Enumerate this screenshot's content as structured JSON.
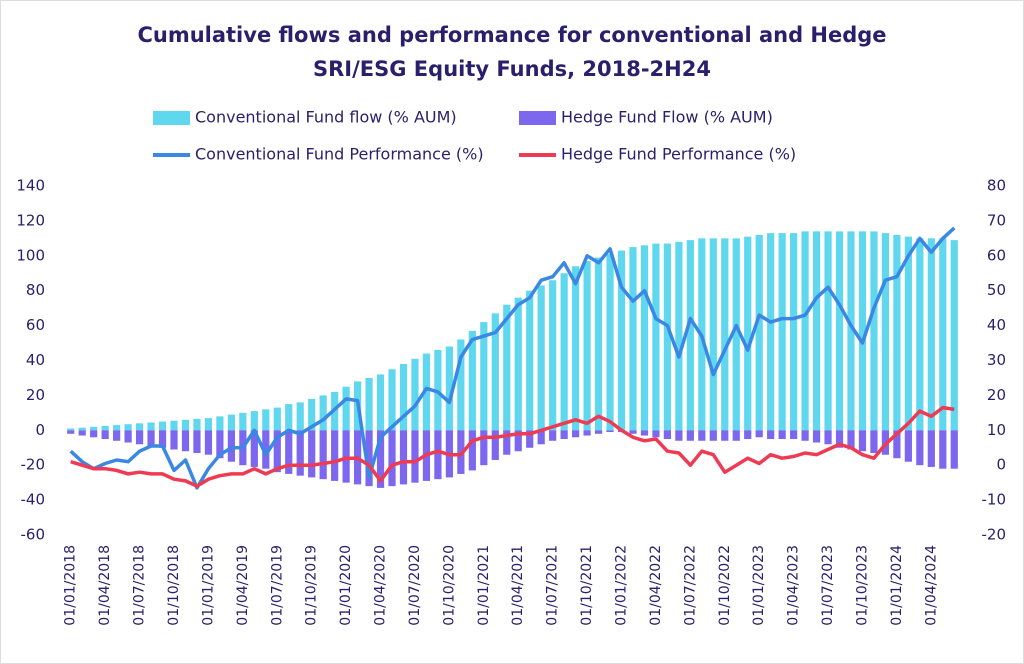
{
  "chart_data": {
    "type": "combo",
    "title": "Cumulative flows and performance for conventional and Hedge SRI/ESG Equity Funds, 2018-2H24",
    "categories": [
      "01/01/2018",
      null,
      null,
      "01/04/2018",
      null,
      null,
      "01/07/2018",
      null,
      null,
      "01/10/2018",
      null,
      null,
      "01/01/2019",
      null,
      null,
      "01/04/2019",
      null,
      null,
      "01/07/2019",
      null,
      null,
      "01/10/2019",
      null,
      null,
      "01/01/2020",
      null,
      null,
      "01/04/2020",
      null,
      null,
      "01/07/2020",
      null,
      null,
      "01/10/2020",
      null,
      null,
      "01/01/2021",
      null,
      null,
      "01/04/2021",
      null,
      null,
      "01/07/2021",
      null,
      null,
      "01/10/2021",
      null,
      null,
      "01/01/2022",
      null,
      null,
      "01/04/2022",
      null,
      null,
      "01/07/2022",
      null,
      null,
      "01/10/2022",
      null,
      null,
      "01/01/2023",
      null,
      null,
      "01/04/2023",
      null,
      null,
      "01/07/2023",
      null,
      null,
      "01/10/2023",
      null,
      null,
      "01/01/2024",
      null,
      null,
      "01/04/2024",
      null,
      null
    ],
    "series": [
      {
        "name": "Conventional Fund flow (% AUM)",
        "type": "bar",
        "color": "#5fd8ef",
        "values": [
          1,
          1.5,
          2,
          2.5,
          3,
          3.5,
          4,
          4.5,
          5,
          5.5,
          6,
          6.5,
          7,
          8,
          9,
          10,
          11,
          12,
          13,
          15,
          16,
          18,
          20,
          22,
          25,
          28,
          30,
          32,
          35,
          38,
          41,
          44,
          46,
          48,
          52,
          57,
          62,
          67,
          72,
          76,
          80,
          83,
          86,
          90,
          94,
          97,
          99,
          101,
          103,
          105,
          106,
          107,
          107,
          108,
          109,
          110,
          110,
          110,
          110,
          111,
          112,
          113,
          113,
          113,
          114,
          114,
          114,
          114,
          114,
          114,
          114,
          113,
          112,
          111,
          110,
          110,
          110,
          109
        ]
      },
      {
        "name": "Hedge Fund Flow (% AUM)",
        "type": "bar",
        "color": "#7c67ee",
        "values": [
          -2,
          -3,
          -4,
          -5,
          -6,
          -7,
          -8,
          -9,
          -10,
          -11,
          -12,
          -13,
          -14,
          -16,
          -18,
          -20,
          -21,
          -22,
          -24,
          -25,
          -26,
          -27,
          -28,
          -29,
          -30,
          -31,
          -32,
          -33,
          -32,
          -31,
          -30,
          -29,
          -28,
          -27,
          -25,
          -23,
          -20,
          -17,
          -14,
          -12,
          -10,
          -8,
          -6,
          -5,
          -4,
          -3,
          -2,
          -1,
          -1,
          -2,
          -3,
          -4,
          -5,
          -6,
          -6,
          -6,
          -6,
          -6,
          -6,
          -5,
          -4,
          -5,
          -5,
          -5,
          -6,
          -7,
          -8,
          -10,
          -11,
          -12,
          -13,
          -14,
          -16,
          -18,
          -20,
          -21,
          -22,
          -22
        ]
      },
      {
        "name": "Conventional Fund Performance (%)",
        "type": "line",
        "axis": "y2",
        "color": "#3a87e4",
        "values": [
          4,
          1,
          -1,
          0.5,
          1.5,
          1,
          4,
          5.5,
          5.5,
          -1.5,
          1.5,
          -6.5,
          -1,
          3,
          5,
          5,
          10,
          3,
          8,
          10,
          9,
          11,
          13,
          16,
          19,
          18.5,
          -3.5,
          8,
          11,
          14,
          17,
          22,
          21,
          18,
          31,
          36,
          37,
          38,
          42,
          46,
          48,
          53,
          54,
          58,
          52,
          60,
          58,
          62,
          51,
          47,
          50,
          42,
          40,
          31,
          42,
          37,
          26,
          33,
          40,
          33,
          43,
          41,
          42,
          42,
          43,
          48,
          51,
          46,
          40,
          35,
          45,
          53,
          54,
          60,
          65,
          61,
          65,
          68
        ]
      },
      {
        "name": "Hedge Fund Performance (%)",
        "type": "line",
        "axis": "y2",
        "color": "#ee3a52",
        "values": [
          1,
          0,
          -1,
          -1,
          -1.5,
          -2.5,
          -2,
          -2.5,
          -2.5,
          -4,
          -4.5,
          -6,
          -4,
          -3,
          -2.5,
          -2.5,
          -1,
          -2.5,
          -1,
          0,
          0,
          0,
          0.5,
          1,
          2,
          2,
          0,
          -4.5,
          0,
          1,
          1,
          3,
          4,
          3,
          3,
          7,
          8,
          8,
          8.5,
          9,
          9,
          10,
          11,
          12,
          13,
          12,
          14,
          12.5,
          10,
          8,
          7,
          7.5,
          4,
          3.5,
          0,
          4,
          3,
          -2,
          0,
          2,
          0.5,
          3,
          2,
          2.5,
          3.5,
          3,
          4.5,
          6,
          5,
          3,
          2,
          6,
          9,
          12,
          15.5,
          14,
          16.5,
          16
        ]
      }
    ],
    "ylim": [
      -60,
      140
    ],
    "yticks": [
      -60,
      -40,
      -20,
      0,
      20,
      40,
      60,
      80,
      100,
      120,
      140
    ],
    "y2lim": [
      -20,
      80
    ],
    "y2ticks": [
      -20,
      -10,
      0,
      10,
      20,
      30,
      40,
      50,
      60,
      70,
      80
    ],
    "grid": false,
    "legend": "top"
  }
}
